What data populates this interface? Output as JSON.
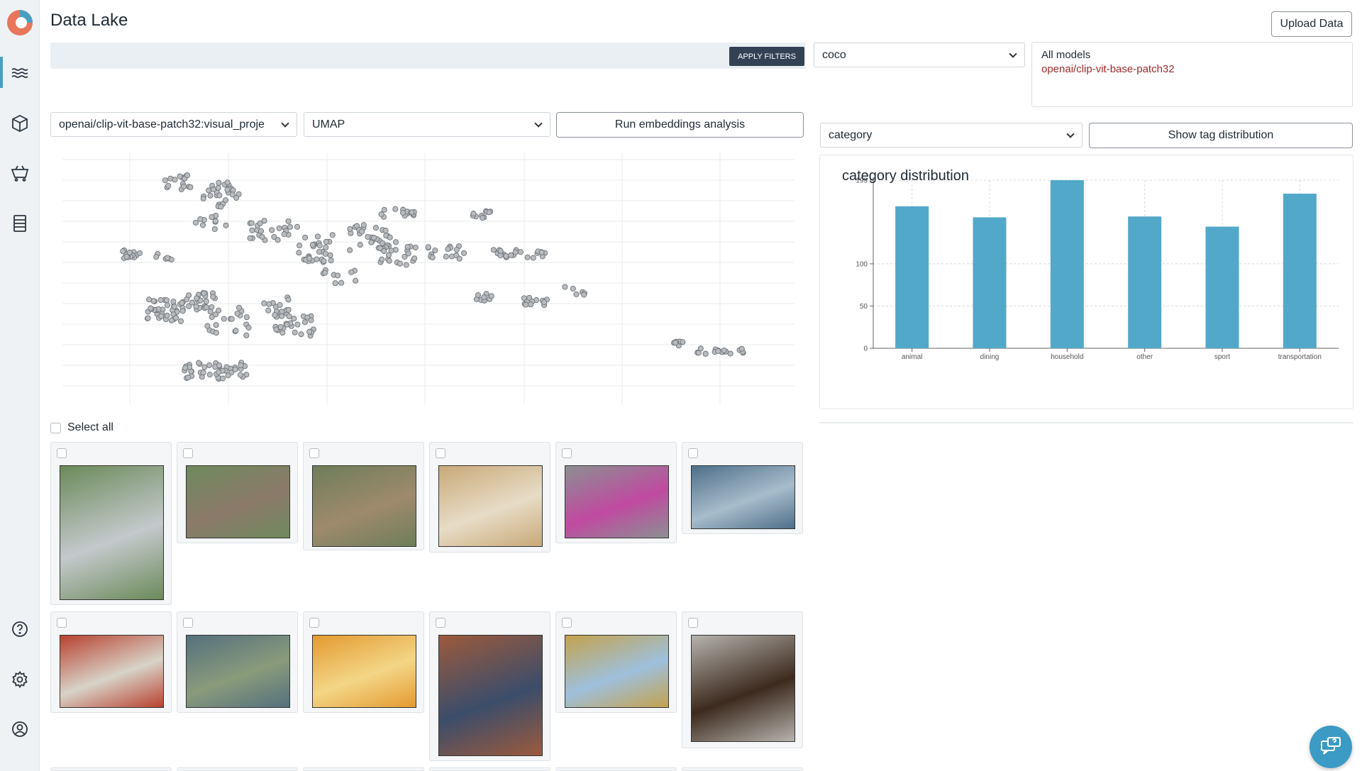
{
  "page": {
    "title": "Data Lake"
  },
  "header": {
    "upload_label": "Upload Data"
  },
  "filters": {
    "apply_label": "APPLY FILTERS",
    "query": ""
  },
  "dataset_select": {
    "value": "coco"
  },
  "models": {
    "all_label": "All models",
    "selected": "openai/clip-vit-base-patch32"
  },
  "embeddings": {
    "source_select": "openai/clip-vit-base-patch32:visual_proje",
    "method_select": "UMAP",
    "run_label": "Run embeddings analysis"
  },
  "tag": {
    "select_value": "category",
    "show_label": "Show tag distribution"
  },
  "chart_data": {
    "type": "bar",
    "title": "category distribution",
    "categories": [
      "animal",
      "dining",
      "household",
      "other",
      "sport",
      "transportation"
    ],
    "values": [
      168,
      155,
      199,
      156,
      144,
      183
    ],
    "yticks": [
      0,
      50,
      100,
      199
    ],
    "ylim": [
      0,
      199
    ],
    "grid": true,
    "bar_color": "#52a8c9"
  },
  "gallery": {
    "select_all_label": "Select all",
    "items": [
      {
        "subject": "people-at-table-city",
        "colors": [
          "#6b8a5a",
          "#c4c9cc"
        ]
      },
      {
        "subject": "people-umbrellas-park",
        "colors": [
          "#6f8a5d",
          "#8c7a6a"
        ]
      },
      {
        "subject": "giraffes",
        "colors": [
          "#6e7d5a",
          "#9e8a6c"
        ]
      },
      {
        "subject": "hotel-room",
        "colors": [
          "#c9a978",
          "#e7dcc6"
        ]
      },
      {
        "subject": "motorcycle-rain",
        "colors": [
          "#8b8f92",
          "#c04aa0"
        ]
      },
      {
        "subject": "surfers",
        "colors": [
          "#4d6f8a",
          "#a8bccb"
        ]
      },
      {
        "subject": "minibus",
        "colors": [
          "#b8412f",
          "#d8d3c8"
        ]
      },
      {
        "subject": "aerial-map",
        "colors": [
          "#54707e",
          "#8a9b7b"
        ]
      },
      {
        "subject": "cake",
        "colors": [
          "#e49a30",
          "#f3d687"
        ]
      },
      {
        "subject": "women-doorway",
        "colors": [
          "#9c5a3c",
          "#3b4d6b"
        ]
      },
      {
        "subject": "train-field",
        "colors": [
          "#c4a24d",
          "#9ec0dd"
        ]
      },
      {
        "subject": "rooster",
        "colors": [
          "#b5b3ad",
          "#3d2a1e"
        ]
      }
    ]
  },
  "sidebar": {
    "items": [
      {
        "icon": "waves-icon",
        "active": true
      },
      {
        "icon": "cube-icon",
        "active": false
      },
      {
        "icon": "cart-icon",
        "active": false
      },
      {
        "icon": "list-icon",
        "active": false
      },
      {
        "icon": "help-icon",
        "active": false
      },
      {
        "icon": "gear-icon",
        "active": false
      },
      {
        "icon": "user-icon",
        "active": false
      }
    ]
  },
  "colors": {
    "accent": "#4a9fc1",
    "apply_bg": "#334155",
    "model_text": "#a02b2b"
  }
}
